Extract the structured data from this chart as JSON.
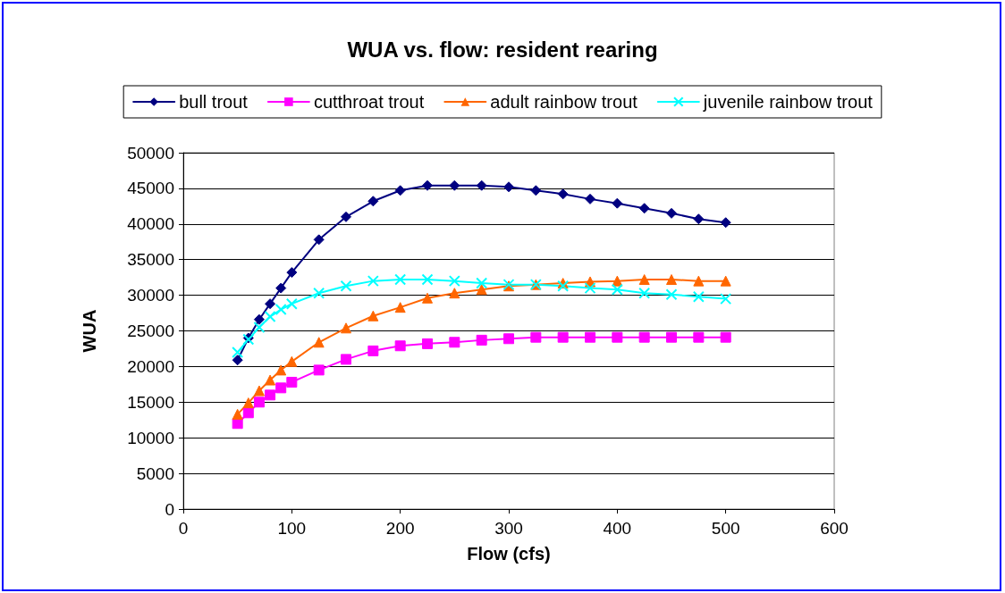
{
  "chart_data": {
    "type": "line",
    "title": "WUA vs. flow: resident rearing",
    "xlabel": "Flow (cfs)",
    "ylabel": "WUA",
    "x": [
      50,
      60,
      70,
      80,
      90,
      100,
      125,
      150,
      175,
      200,
      225,
      250,
      275,
      300,
      325,
      350,
      375,
      400,
      425,
      450,
      475,
      500
    ],
    "xlim": [
      0,
      600
    ],
    "xticks": [
      0,
      100,
      200,
      300,
      400,
      500,
      600
    ],
    "ylim": [
      0,
      50000
    ],
    "yticks": [
      0,
      5000,
      10000,
      15000,
      20000,
      25000,
      30000,
      35000,
      40000,
      45000,
      50000
    ],
    "grid": "y",
    "legend": "top",
    "line_style": "solid",
    "series": [
      {
        "name": "bull trout",
        "color": "#000080",
        "marker": "diamond",
        "values": [
          20900,
          24000,
          26600,
          28800,
          31000,
          33200,
          37800,
          41000,
          43200,
          44700,
          45400,
          45400,
          45400,
          45200,
          44700,
          44200,
          43500,
          42900,
          42200,
          41500,
          40700,
          40200
        ]
      },
      {
        "name": "cutthroat trout",
        "color": "#ff00ff",
        "marker": "square",
        "values": [
          12000,
          13500,
          15000,
          16000,
          17000,
          17800,
          19500,
          21000,
          22200,
          22900,
          23200,
          23400,
          23700,
          23900,
          24100,
          24100,
          24100,
          24100,
          24100,
          24100,
          24100,
          24100
        ]
      },
      {
        "name": "adult rainbow trout",
        "color": "#ff6600",
        "marker": "triangle",
        "values": [
          13300,
          14900,
          16600,
          18100,
          19500,
          20700,
          23400,
          25400,
          27100,
          28300,
          29600,
          30300,
          30800,
          31300,
          31500,
          31700,
          31900,
          32000,
          32200,
          32200,
          32000,
          32000
        ]
      },
      {
        "name": "juvenile rainbow trout",
        "color": "#00ffff",
        "marker": "cross",
        "values": [
          22000,
          23800,
          25500,
          27000,
          28000,
          28800,
          30300,
          31300,
          32000,
          32200,
          32200,
          32000,
          31700,
          31500,
          31500,
          31300,
          31000,
          30800,
          30300,
          30100,
          29800,
          29500
        ]
      }
    ]
  }
}
